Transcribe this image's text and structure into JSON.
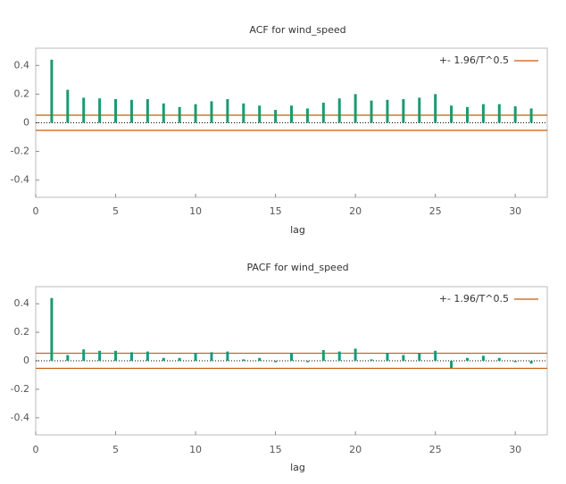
{
  "chart_data": [
    {
      "type": "impulse",
      "title": "ACF for wind_speed",
      "x_label": "lag",
      "x": [
        1,
        2,
        3,
        4,
        5,
        6,
        7,
        8,
        9,
        10,
        11,
        12,
        13,
        14,
        15,
        16,
        17,
        18,
        19,
        20,
        21,
        22,
        23,
        24,
        25,
        26,
        27,
        28,
        29,
        30,
        31
      ],
      "values": [
        0.44,
        0.23,
        0.175,
        0.17,
        0.165,
        0.16,
        0.165,
        0.135,
        0.11,
        0.13,
        0.15,
        0.165,
        0.135,
        0.12,
        0.09,
        0.12,
        0.1,
        0.14,
        0.17,
        0.2,
        0.155,
        0.16,
        0.165,
        0.175,
        0.2,
        0.12,
        0.11,
        0.13,
        0.13,
        0.115,
        0.1
      ],
      "color": "#1a9a74",
      "reference_lines": {
        "name": "+- 1.96/T^0.5",
        "color": "#c55a11",
        "values": [
          0.053,
          -0.053
        ]
      },
      "xlim": [
        0,
        32
      ],
      "xticks": [
        0,
        5,
        10,
        15,
        20,
        25,
        30
      ],
      "ylim": [
        -0.52,
        0.52
      ],
      "yticks": [
        -0.4,
        -0.2,
        0,
        0.2,
        0.4
      ],
      "legend": "upper right"
    },
    {
      "type": "impulse",
      "title": "PACF for wind_speed",
      "x_label": "lag",
      "x": [
        1,
        2,
        3,
        4,
        5,
        6,
        7,
        8,
        9,
        10,
        11,
        12,
        13,
        14,
        15,
        16,
        17,
        18,
        19,
        20,
        21,
        22,
        23,
        24,
        25,
        26,
        27,
        28,
        29,
        30,
        31
      ],
      "values": [
        0.44,
        0.04,
        0.08,
        0.07,
        0.07,
        0.06,
        0.065,
        0.02,
        0.02,
        0.055,
        0.06,
        0.065,
        0.01,
        0.02,
        -0.01,
        0.055,
        -0.01,
        0.075,
        0.065,
        0.085,
        0.01,
        0.055,
        0.04,
        0.05,
        0.07,
        -0.05,
        0.02,
        0.035,
        0.02,
        -0.01,
        -0.02
      ],
      "color": "#1a9a74",
      "reference_lines": {
        "name": "+- 1.96/T^0.5",
        "color": "#c55a11",
        "values": [
          0.053,
          -0.053
        ]
      },
      "xlim": [
        0,
        32
      ],
      "xticks": [
        0,
        5,
        10,
        15,
        20,
        25,
        30
      ],
      "ylim": [
        -0.52,
        0.52
      ],
      "yticks": [
        -0.4,
        -0.2,
        0,
        0.2,
        0.4
      ],
      "legend": "upper right"
    }
  ]
}
